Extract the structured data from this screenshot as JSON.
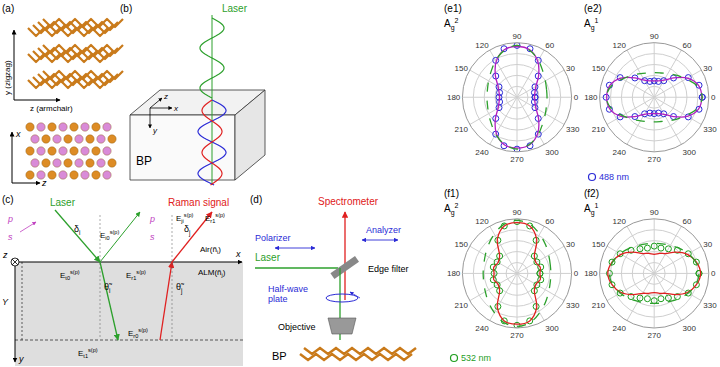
{
  "diagrams": {
    "a": {
      "label": "(a)",
      "y_axis": "y (zigzag)",
      "z_axis": "z (armchair)",
      "x_axis_lower": "x",
      "z_axis_lower": "z"
    },
    "b": {
      "label": "(b)",
      "laser": "Laser",
      "x": "x",
      "y": "y",
      "z": "z",
      "sample": "BP"
    },
    "c": {
      "label": "(c)",
      "laser": "Laser",
      "raman": "Raman signal",
      "p_left": "p",
      "s_left": "s",
      "delta_i": {
        "text": "δ",
        "sub": "i"
      },
      "p_right": "p",
      "s_right": "s",
      "delta_j": {
        "text": "δ",
        "sub": "j"
      },
      "E_i0": {
        "text": "E",
        "sub": "i0",
        "sup": "s(p)"
      },
      "E_ji": {
        "text": "E",
        "sub": "ji",
        "sup": "s(p)"
      },
      "E_r1_top": {
        "text": "E",
        "sub": "r1",
        "sup": "s(p)"
      },
      "air": {
        "text": "Air(ñ",
        "sub": "i",
        "tail": ")"
      },
      "alm": {
        "text": "ALM(ñ",
        "sub": "j",
        "tail": ")"
      },
      "x": "x",
      "z": "z",
      "y": "y",
      "Y": "Y",
      "theta_i": {
        "text": "θ̃",
        "sub": "i"
      },
      "theta_j": {
        "text": "θ̃",
        "sub": "j"
      },
      "E_t0": {
        "text": "E",
        "sub": "t0",
        "sup": "s(p)"
      },
      "E_r1": {
        "text": "E",
        "sub": "r1",
        "sup": "s(p)"
      },
      "E_t1": {
        "text": "E",
        "sub": "t1",
        "sup": "s(p)"
      },
      "E_r0": {
        "text": "E",
        "sub": "r0",
        "sup": "s(p)"
      }
    },
    "d": {
      "label": "(d)",
      "spectrometer": "Spectrometer",
      "analyzer": "Analyzer",
      "laser": "Laser",
      "polarizer": "Polarizer",
      "edge_filter": "Edge filter",
      "half_wave_plate": [
        "Half-wave",
        "plate"
      ],
      "objective": "Objective",
      "sample": "BP"
    }
  },
  "chart_data": [
    {
      "type": "polar",
      "panel": "(e1)",
      "title": {
        "text": "A",
        "sub": "g",
        "sup": "2"
      },
      "x": [
        0,
        15,
        30,
        45,
        60,
        75,
        90,
        105,
        120,
        135,
        150,
        165,
        180,
        195,
        210,
        225,
        240,
        255,
        270,
        285,
        300,
        315,
        330,
        345,
        360
      ],
      "xlim": [
        0,
        360
      ],
      "xticks": [
        0,
        30,
        60,
        90,
        120,
        150,
        180,
        210,
        240,
        270,
        300,
        330
      ],
      "ylim": [
        0,
        1
      ],
      "yticks": [
        0.2,
        0.4,
        0.6,
        0.8,
        1
      ],
      "grid": true,
      "tick_labels": "x",
      "series": [
        {
          "type": "scatter",
          "marker": "open-circle",
          "color": "#2b2bd6",
          "values": [
            0.33,
            0.33,
            0.38,
            0.55,
            0.78,
            0.92,
            0.95,
            0.92,
            0.78,
            0.55,
            0.38,
            0.33,
            0.33,
            0.33,
            0.38,
            0.55,
            0.78,
            0.92,
            0.95,
            0.92,
            0.78,
            0.55,
            0.38,
            0.33,
            0.33
          ]
        },
        {
          "type": "line",
          "line_style": "solid",
          "color": "#b01ec0",
          "values": [
            0.32,
            0.34,
            0.4,
            0.56,
            0.76,
            0.9,
            0.93,
            0.9,
            0.76,
            0.56,
            0.4,
            0.34,
            0.32,
            0.34,
            0.4,
            0.56,
            0.76,
            0.9,
            0.93,
            0.9,
            0.76,
            0.56,
            0.4,
            0.34,
            0.32
          ]
        },
        {
          "type": "line",
          "line_style": "dash",
          "color": "#2ca02c",
          "values": [
            0.55,
            0.56,
            0.6,
            0.67,
            0.78,
            0.89,
            0.95,
            0.89,
            0.78,
            0.67,
            0.6,
            0.56,
            0.55,
            0.56,
            0.6,
            0.67,
            0.78,
            0.89,
            0.95,
            0.89,
            0.78,
            0.67,
            0.6,
            0.56,
            0.55
          ]
        }
      ]
    },
    {
      "type": "polar",
      "panel": "(e2)",
      "title": {
        "text": "A",
        "sub": "g",
        "sup": "1"
      },
      "x": [
        0,
        15,
        30,
        45,
        60,
        75,
        90,
        105,
        120,
        135,
        150,
        165,
        180,
        195,
        210,
        225,
        240,
        255,
        270,
        285,
        300,
        315,
        330,
        345,
        360
      ],
      "xlim": [
        0,
        360
      ],
      "xticks": [
        0,
        30,
        60,
        90,
        120,
        150,
        180,
        210,
        240,
        270,
        300,
        330
      ],
      "ylim": [
        0,
        1
      ],
      "yticks": [
        0.2,
        0.4,
        0.6,
        0.8,
        1
      ],
      "grid": true,
      "tick_labels": "x",
      "legend": "bottom left",
      "series": [
        {
          "type": "scatter",
          "marker": "open-circle",
          "color": "#2b2bd6",
          "name": "488 nm",
          "values": [
            0.88,
            0.85,
            0.72,
            0.5,
            0.35,
            0.3,
            0.3,
            0.3,
            0.35,
            0.5,
            0.72,
            0.85,
            0.88,
            0.85,
            0.72,
            0.5,
            0.35,
            0.3,
            0.3,
            0.3,
            0.35,
            0.5,
            0.72,
            0.85,
            0.88
          ]
        },
        {
          "type": "line",
          "line_style": "solid",
          "color": "#b01ec0",
          "values": [
            0.87,
            0.84,
            0.7,
            0.5,
            0.36,
            0.31,
            0.3,
            0.31,
            0.36,
            0.5,
            0.7,
            0.84,
            0.87,
            0.84,
            0.7,
            0.5,
            0.36,
            0.31,
            0.3,
            0.31,
            0.36,
            0.5,
            0.7,
            0.84,
            0.87
          ]
        },
        {
          "type": "line",
          "line_style": "dash",
          "color": "#2ca02c",
          "values": [
            0.88,
            0.81,
            0.67,
            0.57,
            0.5,
            0.46,
            0.45,
            0.46,
            0.5,
            0.57,
            0.67,
            0.81,
            0.88,
            0.81,
            0.67,
            0.57,
            0.5,
            0.46,
            0.45,
            0.46,
            0.5,
            0.57,
            0.67,
            0.81,
            0.88
          ]
        }
      ]
    },
    {
      "type": "polar",
      "panel": "(f1)",
      "title": {
        "text": "A",
        "sub": "g",
        "sup": "2"
      },
      "x": [
        0,
        15,
        30,
        45,
        60,
        75,
        90,
        105,
        120,
        135,
        150,
        165,
        180,
        195,
        210,
        225,
        240,
        255,
        270,
        285,
        300,
        315,
        330,
        345,
        360
      ],
      "xlim": [
        0,
        360
      ],
      "xticks": [
        0,
        30,
        60,
        90,
        120,
        150,
        180,
        210,
        240,
        270,
        300,
        330
      ],
      "ylim": [
        0,
        1
      ],
      "yticks": [
        0.2,
        0.4,
        0.6,
        0.8,
        1
      ],
      "grid": true,
      "tick_labels": "x",
      "legend": "bottom left",
      "series": [
        {
          "type": "scatter",
          "marker": "open-circle",
          "color": "#1f9e1f",
          "name": "532 nm",
          "values": [
            0.42,
            0.45,
            0.42,
            0.45,
            0.7,
            0.9,
            0.95,
            0.9,
            0.7,
            0.45,
            0.42,
            0.45,
            0.42,
            0.45,
            0.42,
            0.45,
            0.7,
            0.9,
            0.95,
            0.9,
            0.7,
            0.45,
            0.42,
            0.45,
            0.42
          ]
        },
        {
          "type": "line",
          "line_style": "solid",
          "color": "#e02020",
          "values": [
            0.42,
            0.44,
            0.4,
            0.45,
            0.72,
            0.9,
            0.93,
            0.9,
            0.72,
            0.45,
            0.4,
            0.44,
            0.42,
            0.44,
            0.4,
            0.45,
            0.72,
            0.9,
            0.93,
            0.9,
            0.72,
            0.45,
            0.4,
            0.44,
            0.42
          ]
        },
        {
          "type": "line",
          "line_style": "dash",
          "color": "#2ca02c",
          "values": [
            0.62,
            0.63,
            0.67,
            0.74,
            0.83,
            0.93,
            0.97,
            0.93,
            0.83,
            0.74,
            0.67,
            0.63,
            0.62,
            0.63,
            0.67,
            0.74,
            0.83,
            0.93,
            0.97,
            0.93,
            0.83,
            0.74,
            0.67,
            0.63,
            0.62
          ]
        }
      ]
    },
    {
      "type": "polar",
      "panel": "(f2)",
      "title": {
        "text": "A",
        "sub": "g",
        "sup": "1"
      },
      "x": [
        0,
        15,
        30,
        45,
        60,
        75,
        90,
        105,
        120,
        135,
        150,
        165,
        180,
        195,
        210,
        225,
        240,
        255,
        270,
        285,
        300,
        315,
        330,
        345,
        360
      ],
      "xlim": [
        0,
        360
      ],
      "xticks": [
        0,
        30,
        60,
        90,
        120,
        150,
        180,
        210,
        240,
        270,
        300,
        330
      ],
      "ylim": [
        0,
        1
      ],
      "yticks": [
        0.2,
        0.4,
        0.6,
        0.8,
        1
      ],
      "grid": true,
      "tick_labels": "x",
      "series": [
        {
          "type": "scatter",
          "marker": "open-circle",
          "color": "#1f9e1f",
          "values": [
            0.82,
            0.8,
            0.72,
            0.6,
            0.52,
            0.48,
            0.5,
            0.48,
            0.52,
            0.6,
            0.72,
            0.8,
            0.82,
            0.8,
            0.72,
            0.6,
            0.52,
            0.48,
            0.5,
            0.48,
            0.52,
            0.6,
            0.72,
            0.8,
            0.82
          ]
        },
        {
          "type": "line",
          "line_style": "solid",
          "color": "#e02020",
          "values": [
            0.85,
            0.8,
            0.7,
            0.55,
            0.42,
            0.38,
            0.35,
            0.38,
            0.42,
            0.55,
            0.7,
            0.8,
            0.85,
            0.8,
            0.7,
            0.55,
            0.42,
            0.38,
            0.35,
            0.38,
            0.42,
            0.55,
            0.7,
            0.8,
            0.85
          ]
        },
        {
          "type": "line",
          "line_style": "dash",
          "color": "#2ca02c",
          "values": [
            0.82,
            0.79,
            0.72,
            0.65,
            0.59,
            0.56,
            0.55,
            0.56,
            0.59,
            0.65,
            0.72,
            0.79,
            0.82,
            0.79,
            0.72,
            0.65,
            0.59,
            0.56,
            0.55,
            0.56,
            0.59,
            0.65,
            0.72,
            0.79,
            0.82
          ]
        }
      ]
    }
  ]
}
